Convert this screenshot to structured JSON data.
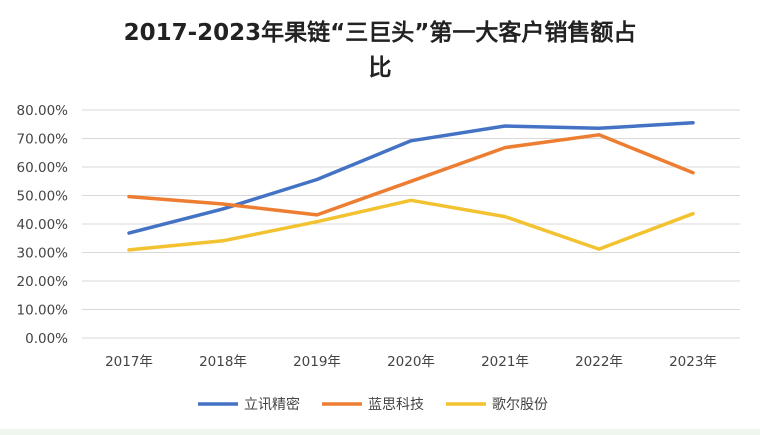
{
  "chart_data": {
    "type": "line",
    "title_line1": "2017-2023年果链“三巨头”第一大客户销售额占",
    "title_line2": "比",
    "categories": [
      "2017年",
      "2018年",
      "2019年",
      "2020年",
      "2021年",
      "2022年",
      "2023年"
    ],
    "y_ticks": [
      "0.00%",
      "10.00%",
      "20.00%",
      "30.00%",
      "40.00%",
      "50.00%",
      "60.00%",
      "70.00%",
      "80.00%"
    ],
    "ylim": [
      0,
      80
    ],
    "grid": true,
    "legend_position": "bottom",
    "series": [
      {
        "name": "立讯精密",
        "color": "#4472C4",
        "values": [
          36.8,
          45.3,
          55.6,
          69.2,
          74.4,
          73.6,
          75.5
        ]
      },
      {
        "name": "蓝思科技",
        "color": "#ED7D31",
        "values": [
          49.6,
          47.0,
          43.2,
          55.0,
          66.8,
          71.3,
          58.0
        ]
      },
      {
        "name": "歌尔股份",
        "color": "#F2C230",
        "values": [
          30.9,
          34.1,
          40.8,
          48.3,
          42.6,
          31.2,
          43.6
        ]
      }
    ]
  }
}
